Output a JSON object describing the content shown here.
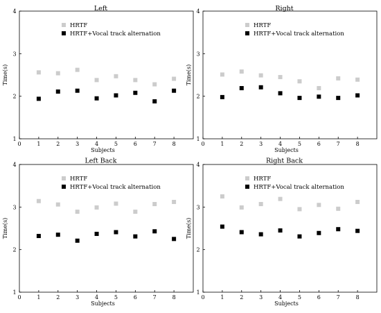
{
  "chart_data": [
    {
      "type": "scatter",
      "title": "Left",
      "xlabel": "Subjects",
      "ylabel": "Time(s)",
      "xlim": [
        0,
        9
      ],
      "ylim": [
        1,
        4
      ],
      "xticks": [
        0,
        1,
        2,
        3,
        4,
        5,
        6,
        7,
        8
      ],
      "yticks": [
        1,
        2,
        3,
        4
      ],
      "legend": "top-center",
      "grid": false,
      "series": [
        {
          "name": "HRTF",
          "color": "#cccccc",
          "x": [
            1,
            2,
            3,
            4,
            5,
            6,
            7,
            8
          ],
          "y": [
            2.56,
            2.54,
            2.62,
            2.38,
            2.47,
            2.38,
            2.28,
            2.41
          ]
        },
        {
          "name": "HRTF+Vocal track alternation",
          "color": "#000000",
          "x": [
            1,
            2,
            3,
            4,
            5,
            6,
            7,
            8
          ],
          "y": [
            1.94,
            2.11,
            2.13,
            1.95,
            2.02,
            2.08,
            1.88,
            2.13
          ]
        }
      ]
    },
    {
      "type": "scatter",
      "title": "Right",
      "xlabel": "Subjects",
      "ylabel": "Time(s)",
      "xlim": [
        0,
        9
      ],
      "ylim": [
        1,
        4
      ],
      "xticks": [
        0,
        1,
        2,
        3,
        4,
        5,
        6,
        7,
        8
      ],
      "yticks": [
        1,
        2,
        3,
        4
      ],
      "legend": "top-center",
      "grid": false,
      "series": [
        {
          "name": "HRTF",
          "color": "#cccccc",
          "x": [
            1,
            2,
            3,
            4,
            5,
            6,
            7,
            8
          ],
          "y": [
            2.51,
            2.58,
            2.49,
            2.45,
            2.35,
            2.19,
            2.42,
            2.39
          ]
        },
        {
          "name": "HRTF+Vocal track alternation",
          "color": "#000000",
          "x": [
            1,
            2,
            3,
            4,
            5,
            6,
            7,
            8
          ],
          "y": [
            1.98,
            2.19,
            2.21,
            2.07,
            1.96,
            1.99,
            1.96,
            2.02
          ]
        }
      ]
    },
    {
      "type": "scatter",
      "title": "Left Back",
      "xlabel": "Subjects",
      "ylabel": "Time(s)",
      "xlim": [
        0,
        9
      ],
      "ylim": [
        1,
        4
      ],
      "xticks": [
        0,
        1,
        2,
        3,
        4,
        5,
        6,
        7,
        8
      ],
      "yticks": [
        1,
        2,
        3,
        4
      ],
      "legend": "top-center",
      "grid": false,
      "series": [
        {
          "name": "HRTF",
          "color": "#cccccc",
          "x": [
            1,
            2,
            3,
            4,
            5,
            6,
            7,
            8
          ],
          "y": [
            3.14,
            3.06,
            2.89,
            2.99,
            3.08,
            2.89,
            3.07,
            3.12
          ]
        },
        {
          "name": "HRTF+Vocal track alternation",
          "color": "#000000",
          "x": [
            1,
            2,
            3,
            4,
            5,
            6,
            7,
            8
          ],
          "y": [
            2.32,
            2.35,
            2.21,
            2.37,
            2.41,
            2.31,
            2.43,
            2.25
          ]
        }
      ]
    },
    {
      "type": "scatter",
      "title": "Right Back",
      "xlabel": "Subjects",
      "ylabel": "Time(s)",
      "xlim": [
        0,
        9
      ],
      "ylim": [
        1,
        4
      ],
      "xticks": [
        0,
        1,
        2,
        3,
        4,
        5,
        6,
        7,
        8
      ],
      "yticks": [
        1,
        2,
        3,
        4
      ],
      "legend": "top-center",
      "grid": false,
      "series": [
        {
          "name": "HRTF",
          "color": "#cccccc",
          "x": [
            1,
            2,
            3,
            4,
            5,
            6,
            7,
            8
          ],
          "y": [
            3.25,
            2.99,
            3.07,
            3.19,
            2.95,
            3.05,
            2.96,
            3.12
          ]
        },
        {
          "name": "HRTF+Vocal track alternation",
          "color": "#000000",
          "x": [
            1,
            2,
            3,
            4,
            5,
            6,
            7,
            8
          ],
          "y": [
            2.54,
            2.41,
            2.36,
            2.45,
            2.31,
            2.39,
            2.48,
            2.44
          ]
        }
      ]
    }
  ]
}
